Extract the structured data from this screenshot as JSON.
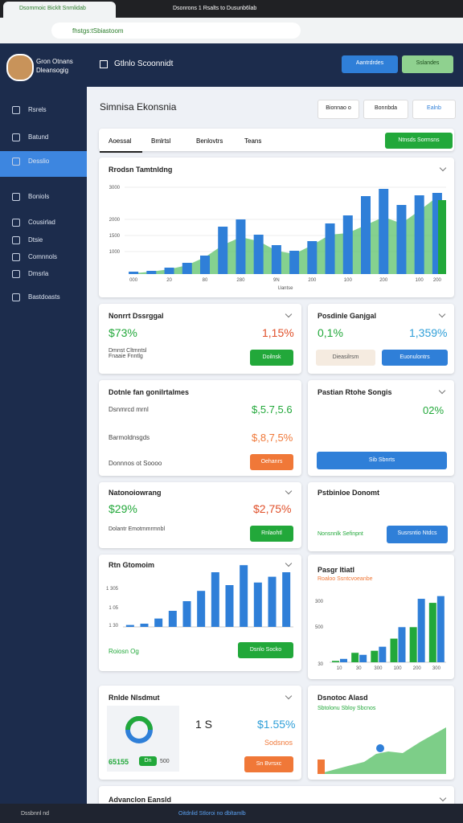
{
  "browser": {
    "tab_title": "Dsommoic Bicklt Snmlidab",
    "window_title": "Dsonrons 1 Rsalts to Dusunb6lab",
    "url": "fhstgs:tSbiastoom"
  },
  "sidebar": {
    "user_name": "Gron Otnans",
    "user_role": "Dleansogig",
    "items": [
      "Rsrels",
      "Batund",
      "Desslio",
      "Boniols",
      "Cousirlad",
      "Dtsie",
      "Comnnols",
      "Dmsrla",
      "Bastdoasts"
    ]
  },
  "header": {
    "title": "Gtlnlo Scoonnidt",
    "button_primary": "Aantrdrdes",
    "button_secondary": "Sslandes"
  },
  "page": {
    "title": "Simnisa Ekonsnia",
    "buttons": [
      "Bionnao o",
      "Bonnbda",
      "Ealnb"
    ]
  },
  "tabs": {
    "items": [
      "Aoessal",
      "Bmlrtsl",
      "Benlovtrs",
      "Teans"
    ],
    "action": "Ntnsds Sormsns"
  },
  "main_chart": {
    "title": "Rrodsn Tamtnldng",
    "x_title": "Uantse",
    "x_labels": [
      "000",
      null,
      "20",
      null,
      "80",
      null,
      "280",
      null,
      "9N",
      null,
      "200",
      null,
      "100",
      null,
      "200",
      null,
      "100",
      "200"
    ],
    "ylim": [
      300,
      3000
    ],
    "yticks": [
      1000,
      1500,
      2000,
      3000
    ],
    "bars": {
      "color": "#2f7fd8",
      "values": [
        375,
        400,
        500,
        650,
        875,
        1775,
        2000,
        1525,
        1200,
        1025,
        1325,
        1875,
        2125,
        2725,
        2950,
        2450,
        2750,
        2825
      ]
    },
    "area": {
      "color": "#5cc26a",
      "values": [
        325,
        375,
        450,
        575,
        825,
        1200,
        1450,
        1325,
        1025,
        925,
        1200,
        1525,
        1575,
        1825,
        2075,
        1875,
        2275,
        2700
      ]
    },
    "highlight": {
      "color": "#22a83a",
      "value": 2600
    }
  },
  "cards": {
    "c1": {
      "title": "Nonrrt Dssrggal",
      "left": "$73%",
      "right": "1,15%",
      "sub": "Dmnst Cltmntsl Fnaaie Fnntlg",
      "button": "Doilnsk"
    },
    "c2": {
      "title": "Posdinle Ganjgal",
      "left": "0,1%",
      "right": "1,359%",
      "button_a": "Dieasilrsm",
      "button_b": "Euonulontrs"
    },
    "c3": {
      "title": "Dotnle fan gonilrtalmes",
      "rows": [
        [
          "Dsnmrcd mrnl",
          "$,5.7,5.6"
        ],
        [
          "Barmoldnsgds",
          "$,8,7,5%"
        ]
      ],
      "foot": "Donnnos ot Soooo",
      "button": "Oehanrs"
    },
    "c4": {
      "title": "Pastian Rtohe Songis",
      "value": "02%",
      "button": "Sib Sbnrts"
    },
    "c5": {
      "title": "Natonoiowrang",
      "left": "$29%",
      "right": "$2,75%",
      "sub": "Dolantr Emotmmrmnbl",
      "button": "Rnlaohtl"
    },
    "c6": {
      "title": "Pstbinloe Donomt",
      "sub": "Nonsnnlk Sefinpnt",
      "button": "Susrsntio Ntdcs"
    },
    "c7": {
      "title": "Rtn Gtomoim",
      "y_labels": [
        "1 305",
        "1 05",
        "1 30"
      ],
      "ylim": [
        0,
        100
      ],
      "color": "#2f7fd8",
      "values": [
        3,
        5,
        13,
        25,
        40,
        56,
        85,
        65,
        96,
        69,
        78,
        85
      ],
      "foot": "Roiosn Og",
      "button": "Dsnlo Socko"
    },
    "c8": {
      "title": "Pasgr Itiatl",
      "sub": "Roaloo Ssntcvoeanbe",
      "y_labels": [
        "300",
        "500",
        "30"
      ],
      "ylim": [
        0,
        100
      ],
      "x_labels": [
        "10",
        "30",
        "300",
        "100",
        "200",
        "300"
      ],
      "series": [
        {
          "color": "#22a83a",
          "values": [
            2,
            14,
            17,
            35,
            52,
            88
          ]
        },
        {
          "color": "#2f7fd8",
          "values": [
            5,
            11,
            23,
            52,
            94,
            98
          ]
        }
      ]
    },
    "c9": {
      "title": "Rnlde Nlsdmut",
      "big": "1 S",
      "value": "$1.55%",
      "sub": "Sodsnos",
      "badge": "65155",
      "chip": "Dn",
      "small": "500",
      "button": "Sn Bvrsxc"
    },
    "c10": {
      "title": "Dsnotoc Alasd",
      "sub": "Sbtolonu Sbloy Sbcnos"
    },
    "c11": {
      "title": "Advanclon Eansld"
    }
  },
  "taskbar": {
    "left": "Dssbnnl nd",
    "center": "Oitdnlid Stloroi no dbltamlb"
  }
}
